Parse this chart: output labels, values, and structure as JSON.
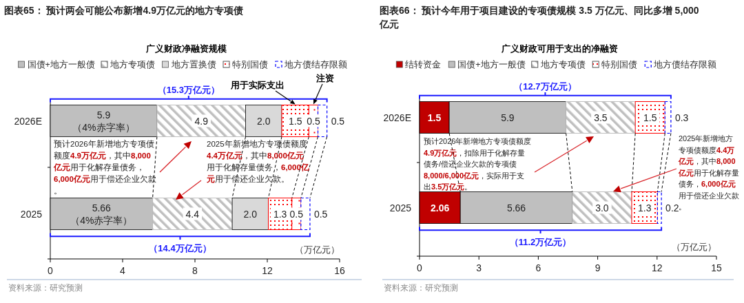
{
  "chart_data": [
    {
      "type": "bar",
      "orientation": "horizontal",
      "stacked": true,
      "title": "图表65：  预计两会可能公布新增4.9万亿元的地方专项债",
      "subtitle": "广义财政净融资规模",
      "xlabel": "（万亿元）",
      "categories": [
        "2026E",
        "2025"
      ],
      "xlim": [
        0,
        16
      ],
      "xticks": [
        0,
        4,
        8,
        12,
        16
      ],
      "legend": "top",
      "series": [
        {
          "name": "国债+地方一般债",
          "color": "#bfbfbf",
          "values": [
            5.9,
            5.66
          ],
          "value_labels": [
            "5.9（4%赤字率）",
            "5.66（4%赤字率）"
          ]
        },
        {
          "name": "地方专项债",
          "color": "#bfbfbf",
          "values": [
            4.9,
            4.4
          ],
          "value_labels": [
            "4.9",
            "4.4"
          ]
        },
        {
          "name": "地方置换债",
          "color": "#d9d9d9",
          "values": [
            2.0,
            2.0
          ],
          "value_labels": [
            "2.0",
            "2.0"
          ]
        },
        {
          "name": "特别国债",
          "color": "#ff0000",
          "values": [
            1.5,
            1.3
          ],
          "value_labels": [
            "1.5",
            "1.3"
          ]
        },
        {
          "color": "#ff0000",
          "values": [
            0.5,
            0.5
          ],
          "value_labels": [
            "0.5",
            "0.5"
          ]
        },
        {
          "name": "地方债结存限额",
          "color": "#0000ff",
          "values": [
            0.5,
            0.5
          ],
          "value_labels": [
            "0.5",
            "0.5"
          ]
        }
      ],
      "annotations": [
        "（15.3万亿元）",
        "（14.4万亿元）",
        "用于实际支出",
        "注资",
        "预计2026年新增地方专项债额度**4.9万亿元**，其中**8,000亿元**用于化解存量债务，**6,000亿元**用于偿还企业欠款。",
        "2025年新增地方专项债额度**4.4万亿元**，其中**8,000亿元**用于化解存量债务，**6,000亿元**用于偿还企业欠款。",
        "资料来源：研究预测"
      ]
    },
    {
      "type": "bar",
      "orientation": "horizontal",
      "stacked": true,
      "title": "图表66：  预计今年用于项目建设的专项债规模 3.5 万亿元、同比多增 5,000 亿元",
      "subtitle": "广义财政可用于支出的净融资",
      "xlabel": "（万亿元）",
      "categories": [
        "2026E",
        "2025"
      ],
      "xlim": [
        0,
        15
      ],
      "xticks": [
        0,
        3,
        6,
        9,
        12,
        15
      ],
      "legend": "top",
      "series": [
        {
          "name": "结转资金",
          "color": "#c00000",
          "values": [
            1.5,
            2.06
          ],
          "value_labels": [
            "1.5",
            "2.06"
          ]
        },
        {
          "name": "国债+地方一般债",
          "color": "#bfbfbf",
          "values": [
            5.9,
            5.66
          ],
          "value_labels": [
            "5.9",
            "5.66"
          ]
        },
        {
          "name": "地方专项债",
          "color": "#bfbfbf",
          "values": [
            3.5,
            3.0
          ],
          "value_labels": [
            "3.5",
            "3.0"
          ]
        },
        {
          "name": "特别国债",
          "color": "#ff0000",
          "values": [
            1.5,
            1.3
          ],
          "value_labels": [
            "1.5",
            "1.3"
          ]
        },
        {
          "name": "地方债结存限额",
          "color": "#0000ff",
          "values": [
            0.3,
            0.2
          ],
          "value_labels": [
            "0.3",
            "0.2"
          ]
        }
      ],
      "annotations": [
        "（12.7万亿元）",
        "（11.2万亿元）",
        "预计2026年新增地方专项债额度**4.9万亿元**，扣除用于化解存量债务/偿还企业欠款的专项债**8,000/6,000亿元**，实际用于支出**3.5万亿元**。",
        "2025年新增地方专项债额度**4.4万亿元**，其中**8,000亿元**用于化解存量债务，**6,000亿元**用于偿还企业欠款。",
        "资料来源：研究预测"
      ]
    }
  ]
}
